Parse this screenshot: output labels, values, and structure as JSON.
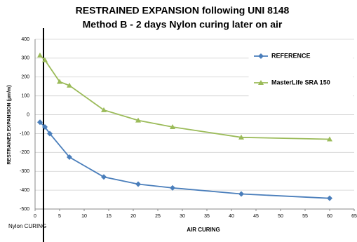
{
  "chart_data": {
    "type": "line",
    "title": "RESTRAINED EXPANSION following  UNI 8148",
    "subtitle": "Method B - 2 days Nylon curing later on air",
    "y_label": "RESTRAINED  EXPANSION (µm/m)",
    "x_annotation_left": "Nylon CURING",
    "x_annotation_right": "AIR CURING",
    "xlim": [
      0,
      65
    ],
    "xticks": [
      0,
      5,
      10,
      15,
      20,
      25,
      30,
      35,
      40,
      45,
      50,
      55,
      60,
      65
    ],
    "ylim": [
      -500,
      400
    ],
    "yticks": [
      -500,
      -400,
      -300,
      -200,
      -100,
      0,
      100,
      200,
      300,
      400
    ],
    "grid": true,
    "legend": "upper right",
    "series": [
      {
        "name": "REFERENCE",
        "color": "#4a7ebb",
        "marker": "diamond",
        "x": [
          1,
          2,
          3,
          7,
          14,
          21,
          28,
          42,
          60
        ],
        "values": [
          -40,
          -65,
          -100,
          -225,
          -330,
          -368,
          -388,
          -420,
          -443
        ]
      },
      {
        "name": "MasterLife SRA 150",
        "color": "#9bbb59",
        "marker": "triangle",
        "x": [
          1,
          2,
          5,
          7,
          14,
          21,
          28,
          42,
          60
        ],
        "values": [
          315,
          290,
          175,
          155,
          25,
          -30,
          -65,
          -120,
          -130
        ]
      }
    ]
  }
}
